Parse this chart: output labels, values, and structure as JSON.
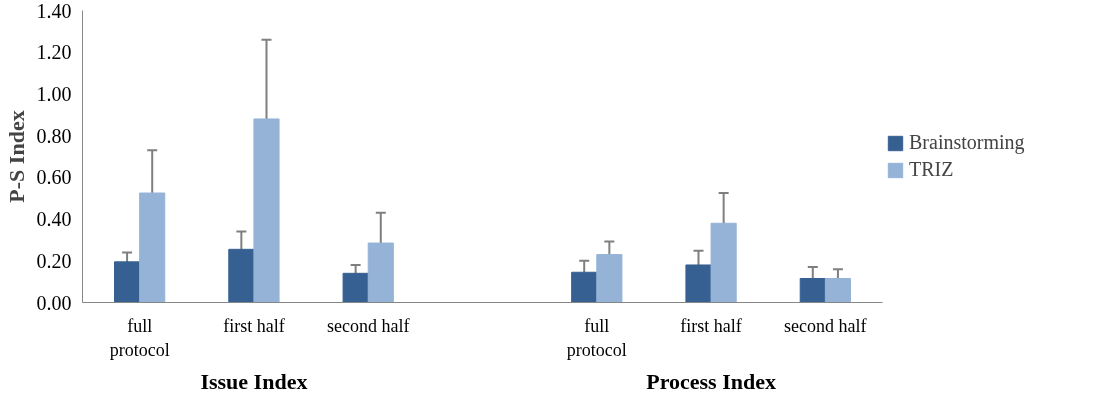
{
  "chart_data": {
    "type": "bar",
    "ylabel": "P-S Index",
    "categories": [
      "full protocol",
      "first half",
      "second half",
      null,
      "full protocol",
      "first half",
      "second half"
    ],
    "series": [
      {
        "name": "Brainstorming",
        "color": "#376092",
        "values": [
          0.195,
          0.255,
          0.14,
          null,
          0.145,
          0.18,
          0.115
        ],
        "errors": [
          0.045,
          0.085,
          0.04,
          null,
          0.055,
          0.068,
          0.055
        ]
      },
      {
        "name": "TRIZ",
        "color": "#95b3d7",
        "values": [
          0.525,
          0.88,
          0.285,
          null,
          0.23,
          0.38,
          0.115
        ],
        "errors": [
          0.205,
          0.38,
          0.145,
          null,
          0.063,
          0.145,
          0.045
        ]
      }
    ],
    "ylim": [
      0,
      1.4
    ],
    "yticks": [
      {
        "value": 0,
        "label": "0.00"
      },
      {
        "value": 0.2,
        "label": "0.20"
      },
      {
        "value": 0.4,
        "label": "0.40"
      },
      {
        "value": 0.6,
        "label": "0.60"
      },
      {
        "value": 0.8,
        "label": "0.80"
      },
      {
        "value": 1.0,
        "label": "1.00"
      },
      {
        "value": 1.2,
        "label": "1.20"
      },
      {
        "value": 1.4,
        "label": "1.40"
      }
    ],
    "annotations": [
      "Issue Index",
      "Process Index"
    ],
    "grid": false,
    "legend": "right"
  }
}
